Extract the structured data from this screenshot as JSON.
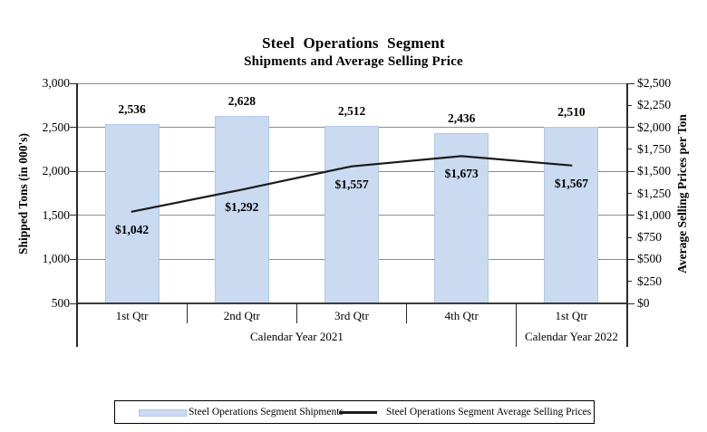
{
  "colors": {
    "bar_fill": "#c9daf1",
    "bar_border": "#b4c7e2",
    "line": "#1a1a1a",
    "gridline": "#8d8d8d",
    "axis": "#3b3b3b"
  },
  "chart_data": {
    "type": "bar+line",
    "title": "Steel Operations Segment",
    "subtitle": "Shipments and Average Selling Price",
    "categories": [
      "1st Qtr",
      "2nd Qtr",
      "3rd Qtr",
      "4th Qtr",
      "1st Qtr"
    ],
    "category_groups": [
      {
        "label": "Calendar Year 2021",
        "span": 4
      },
      {
        "label": "Calendar Year 2022",
        "span": 1
      }
    ],
    "series": [
      {
        "name": "Steel Operations Segment Shipments",
        "type": "bar",
        "axis": "left",
        "values": [
          2536,
          2628,
          2512,
          2436,
          2510
        ],
        "data_labels": [
          "2,536",
          "2,628",
          "2,512",
          "2,436",
          "2,510"
        ]
      },
      {
        "name": "Steel Operations Segment Average Selling Prices",
        "type": "line",
        "axis": "right",
        "values": [
          1042,
          1292,
          1557,
          1673,
          1567
        ],
        "data_labels": [
          "$1,042",
          "$1,292",
          "$1,557",
          "$1,673",
          "$1,567"
        ]
      }
    ],
    "left_axis": {
      "title": "Shipped Tons (in 000's)",
      "min": 500,
      "max": 3000,
      "tick_step": 500,
      "tick_labels": [
        "3,000",
        "2,500",
        "2,000",
        "1,500",
        "1,000",
        "500"
      ]
    },
    "right_axis": {
      "title": "Average Selling Prices per Ton",
      "min": 0,
      "max": 2500,
      "tick_step": 250,
      "gridline_step": 500,
      "tick_labels": [
        "$2,500",
        "$2,250",
        "$2,000",
        "$1,750",
        "$1,500",
        "$1,250",
        "$1,000",
        "$750",
        "$500",
        "$250",
        "$0"
      ]
    },
    "grid": "horizontal",
    "legend_position": "bottom"
  }
}
